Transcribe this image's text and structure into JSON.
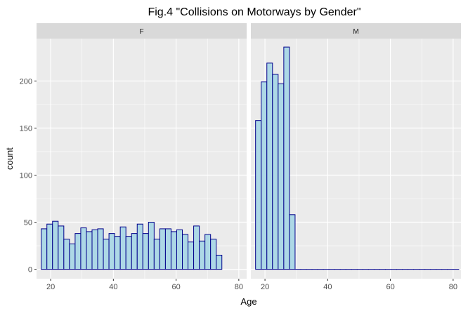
{
  "chart_data": {
    "type": "bar",
    "title": "Fig.4 \"Collisions on Motorways by Gender\"",
    "xlabel": "Age",
    "ylabel": "count",
    "xlim": [
      15.5,
      82.5
    ],
    "ylim": [
      -10,
      245
    ],
    "x_ticks": [
      20,
      40,
      60,
      80
    ],
    "y_ticks": [
      0,
      50,
      100,
      150,
      200
    ],
    "grid": true,
    "bin_width": 1.8,
    "bin_start": 17,
    "bar_fill": "#add8e6",
    "bar_stroke": "#00008b",
    "panel_background": "#ebebeb",
    "strip_background": "#d9d9d9",
    "gridline_color": "#ffffff",
    "panels": [
      {
        "label": "F",
        "values": [
          43,
          48,
          51,
          46,
          32,
          27,
          38,
          44,
          40,
          42,
          43,
          32,
          38,
          35,
          45,
          35,
          38,
          48,
          38,
          50,
          32,
          43,
          43,
          40,
          42,
          37,
          29,
          46,
          30,
          37,
          32,
          15
        ]
      },
      {
        "label": "M",
        "values": [
          158,
          199,
          219,
          207,
          197,
          236,
          58,
          0,
          0,
          0,
          0,
          0,
          0,
          0,
          0,
          0,
          0,
          0,
          0,
          0,
          0,
          0,
          0,
          0,
          0,
          0,
          0,
          0,
          0,
          0,
          0,
          0,
          0,
          0,
          0,
          0
        ]
      }
    ]
  }
}
